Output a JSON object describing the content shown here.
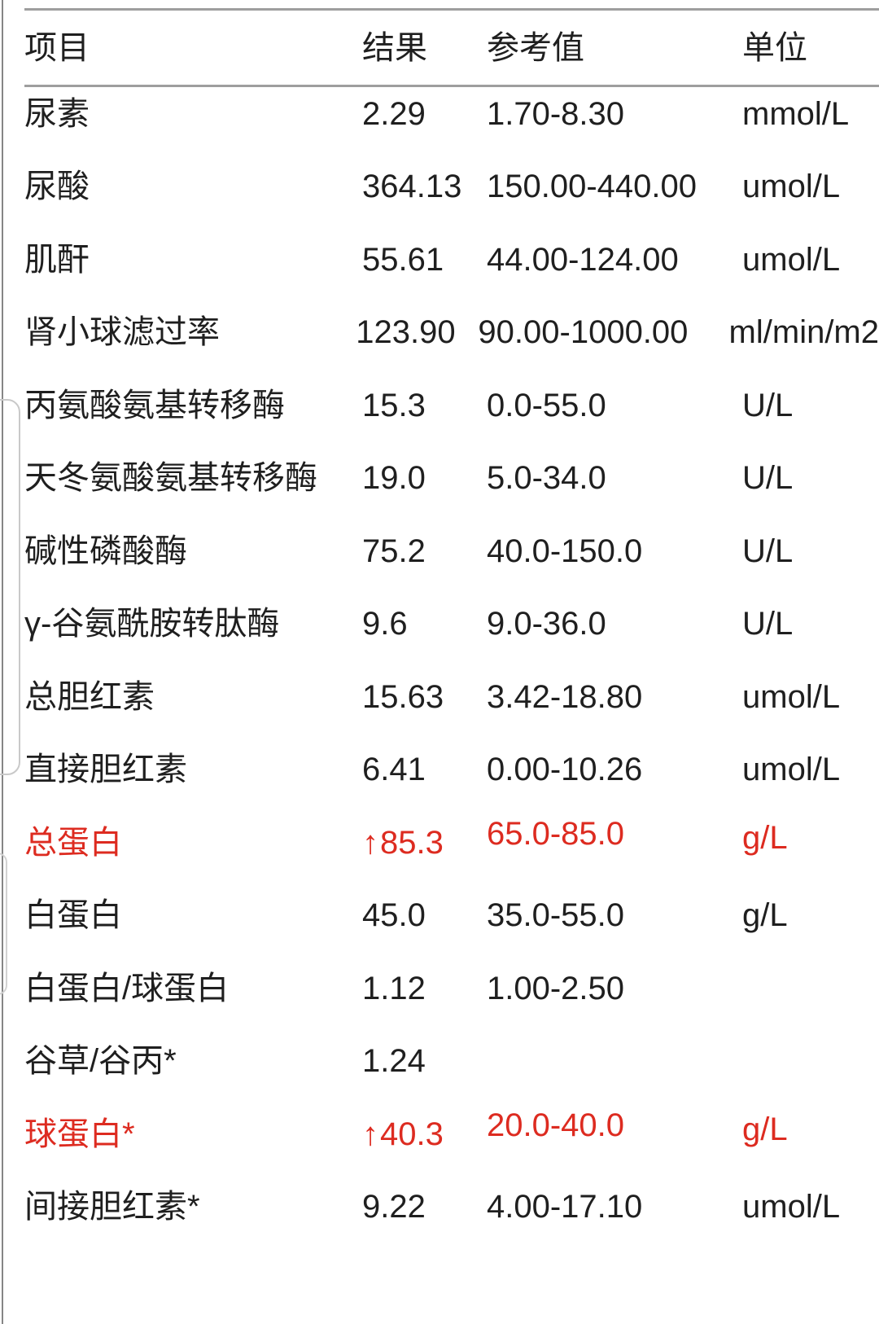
{
  "colors": {
    "text": "#1f1f1f",
    "abnormal_red": "#dd2b20",
    "rule_gray": "#9e9e9e"
  },
  "table": {
    "headers": {
      "item": "项目",
      "result": "结果",
      "reference": "参考值",
      "unit": "单位"
    },
    "rows": [
      {
        "item": "尿素",
        "flag": "",
        "result": "2.29",
        "reference": "1.70-8.30",
        "unit": "mmol/L",
        "abnormal": false
      },
      {
        "item": "尿酸",
        "flag": "",
        "result": "364.13",
        "reference": "150.00-440.00",
        "unit": "umol/L",
        "abnormal": false
      },
      {
        "item": "肌酐",
        "flag": "",
        "result": "55.61",
        "reference": "44.00-124.00",
        "unit": "umol/L",
        "abnormal": false
      },
      {
        "item": "肾小球滤过率",
        "flag": "",
        "result": "123.90",
        "reference": "90.00-1000.00",
        "unit": "ml/min/m2",
        "abnormal": false
      },
      {
        "item": "丙氨酸氨基转移酶",
        "flag": "",
        "result": "15.3",
        "reference": "0.0-55.0",
        "unit": "U/L",
        "abnormal": false
      },
      {
        "item": "天冬氨酸氨基转移酶",
        "flag": "",
        "result": "19.0",
        "reference": "5.0-34.0",
        "unit": "U/L",
        "abnormal": false
      },
      {
        "item": "碱性磷酸酶",
        "flag": "",
        "result": "75.2",
        "reference": "40.0-150.0",
        "unit": "U/L",
        "abnormal": false
      },
      {
        "item": "γ-谷氨酰胺转肽酶",
        "flag": "",
        "result": "9.6",
        "reference": "9.0-36.0",
        "unit": "U/L",
        "abnormal": false
      },
      {
        "item": "总胆红素",
        "flag": "",
        "result": "15.63",
        "reference": "3.42-18.80",
        "unit": "umol/L",
        "abnormal": false
      },
      {
        "item": "直接胆红素",
        "flag": "",
        "result": "6.41",
        "reference": "0.00-10.26",
        "unit": "umol/L",
        "abnormal": false
      },
      {
        "item": "总蛋白",
        "flag": "↑",
        "result": "85.3",
        "reference": "65.0-85.0",
        "unit": "g/L",
        "abnormal": true
      },
      {
        "item": "白蛋白",
        "flag": "",
        "result": "45.0",
        "reference": "35.0-55.0",
        "unit": "g/L",
        "abnormal": false
      },
      {
        "item": "白蛋白/球蛋白",
        "flag": "",
        "result": "1.12",
        "reference": "1.00-2.50",
        "unit": "",
        "abnormal": false
      },
      {
        "item": "谷草/谷丙*",
        "flag": "",
        "result": "1.24",
        "reference": "",
        "unit": "",
        "abnormal": false
      },
      {
        "item": "球蛋白*",
        "flag": "↑",
        "result": "40.3",
        "reference": "20.0-40.0",
        "unit": "g/L",
        "abnormal": true
      },
      {
        "item": "间接胆红素*",
        "flag": "",
        "result": "9.22",
        "reference": "4.00-17.10",
        "unit": "umol/L",
        "abnormal": false
      }
    ]
  }
}
